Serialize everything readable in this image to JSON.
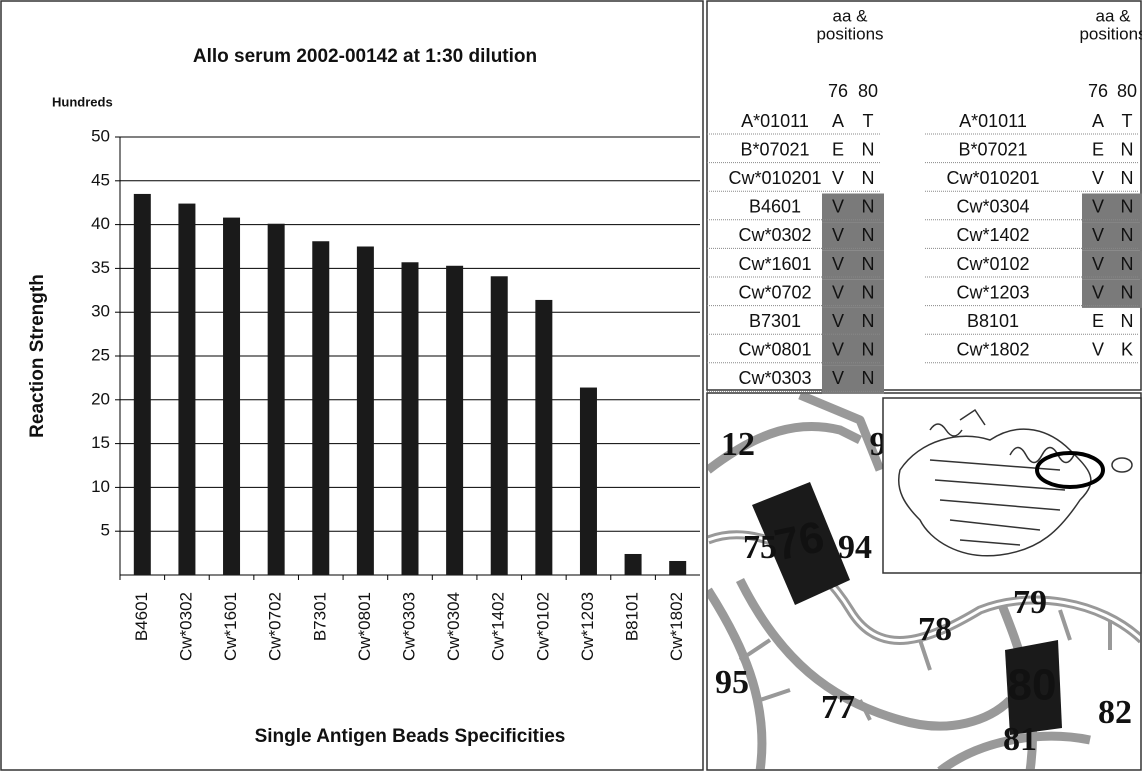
{
  "chart_data": {
    "type": "bar",
    "title": "Allo serum 2002-00142 at 1:30 dilution",
    "y_unit": "Hundreds",
    "y_label": "Reaction Strength",
    "x_label": "Single Antigen Beads Specificities",
    "categories": [
      "B4601",
      "Cw*0302",
      "Cw*1601",
      "Cw*0702",
      "B7301",
      "Cw*0801",
      "Cw*0303",
      "Cw*0304",
      "Cw*1402",
      "Cw*0102",
      "Cw*1203",
      "B8101",
      "Cw*1802"
    ],
    "values": [
      43.5,
      42.4,
      40.8,
      40.1,
      38.1,
      37.5,
      35.7,
      35.3,
      34.1,
      31.4,
      21.4,
      2.4,
      1.6
    ],
    "color": "#1a1a1a",
    "ylim": [
      0,
      50
    ],
    "yticks": [
      5,
      10,
      15,
      20,
      25,
      30,
      35,
      40,
      45,
      50
    ],
    "grid": true
  },
  "table": {
    "header": [
      "aa &",
      "positions"
    ],
    "positions": [
      "76",
      "80"
    ],
    "left": [
      {
        "allele": "A*01011",
        "aa": [
          "A",
          "T"
        ],
        "shaded": false
      },
      {
        "allele": "B*07021",
        "aa": [
          "E",
          "N"
        ],
        "shaded": false
      },
      {
        "allele": "Cw*010201",
        "aa": [
          "V",
          "N"
        ],
        "shaded": false
      },
      {
        "allele": "B4601",
        "aa": [
          "V",
          "N"
        ],
        "shaded": true
      },
      {
        "allele": "Cw*0302",
        "aa": [
          "V",
          "N"
        ],
        "shaded": true
      },
      {
        "allele": "Cw*1601",
        "aa": [
          "V",
          "N"
        ],
        "shaded": true
      },
      {
        "allele": "Cw*0702",
        "aa": [
          "V",
          "N"
        ],
        "shaded": true
      },
      {
        "allele": "B7301",
        "aa": [
          "V",
          "N"
        ],
        "shaded": true
      },
      {
        "allele": "Cw*0801",
        "aa": [
          "V",
          "N"
        ],
        "shaded": true
      },
      {
        "allele": "Cw*0303",
        "aa": [
          "V",
          "N"
        ],
        "shaded": true
      }
    ],
    "right": [
      {
        "allele": "A*01011",
        "aa": [
          "A",
          "T"
        ],
        "shaded": false
      },
      {
        "allele": "B*07021",
        "aa": [
          "E",
          "N"
        ],
        "shaded": false
      },
      {
        "allele": "Cw*010201",
        "aa": [
          "V",
          "N"
        ],
        "shaded": false
      },
      {
        "allele": "Cw*0304",
        "aa": [
          "V",
          "N"
        ],
        "shaded": true
      },
      {
        "allele": "Cw*1402",
        "aa": [
          "V",
          "N"
        ],
        "shaded": true
      },
      {
        "allele": "Cw*0102",
        "aa": [
          "V",
          "N"
        ],
        "shaded": true
      },
      {
        "allele": "Cw*1203",
        "aa": [
          "V",
          "N"
        ],
        "shaded": true
      },
      {
        "allele": "B8101",
        "aa": [
          "E",
          "N"
        ],
        "shaded": false
      },
      {
        "allele": "Cw*1802",
        "aa": [
          "V",
          "K"
        ],
        "shaded": false
      }
    ]
  },
  "diagram": {
    "labels": [
      "12",
      "9",
      "75",
      "94",
      "95",
      "77",
      "78",
      "79",
      "81",
      "82"
    ],
    "highlighted": [
      "76",
      "80"
    ]
  }
}
